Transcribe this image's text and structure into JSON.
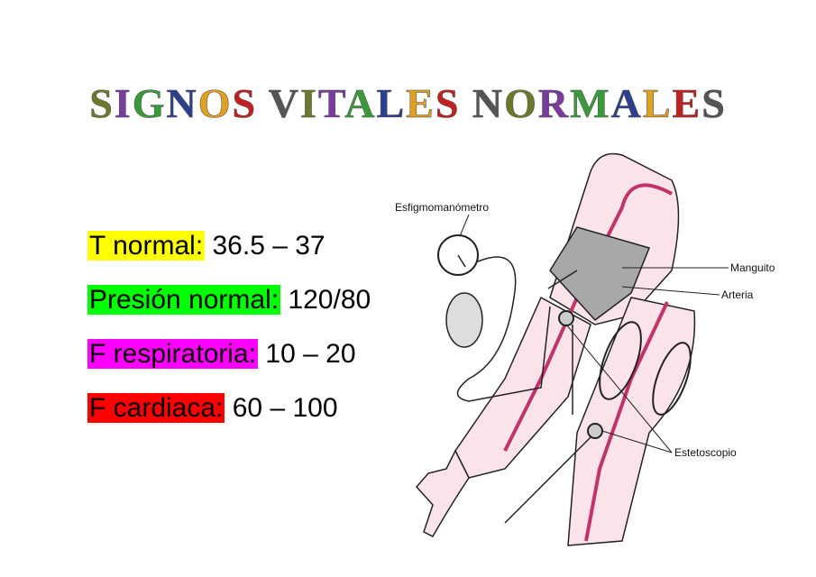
{
  "title": "SIGNOS VITALES NORMALES",
  "items": [
    {
      "label": "T normal:",
      "value": "36.5 – 37"
    },
    {
      "label": "Presión normal:",
      "value": "120/80"
    },
    {
      "label": "F respiratoria:",
      "value": "10 – 20"
    },
    {
      "label": "F cardiaca:",
      "value": "60 – 100"
    }
  ],
  "illustration": {
    "labels": [
      "Esfigmomanómetro",
      "Manguito",
      "Arteria",
      "Estetoscopio"
    ]
  }
}
